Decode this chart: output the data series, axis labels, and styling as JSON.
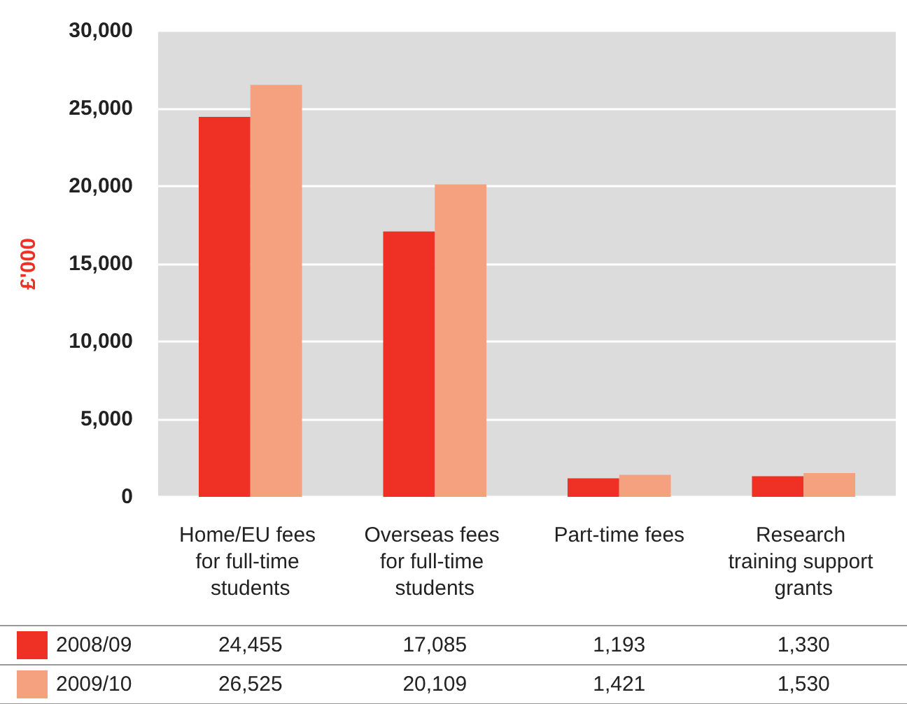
{
  "chart_data": {
    "type": "bar",
    "ylabel": "£'000",
    "categories": [
      "Home/EU fees for full-time students",
      "Overseas fees for full-time students",
      "Part-time fees",
      "Research training support grants"
    ],
    "series": [
      {
        "name": "2008/09",
        "color": "#ee3124",
        "values": [
          24455,
          17085,
          1193,
          1330
        ],
        "value_labels": [
          "24,455",
          "17,085",
          "1,193",
          "1,330"
        ]
      },
      {
        "name": "2009/10",
        "color": "#f5a07f",
        "values": [
          26525,
          20109,
          1421,
          1530
        ],
        "value_labels": [
          "26,525",
          "20,109",
          "1,421",
          "1,530"
        ]
      }
    ],
    "ylim": [
      0,
      30000
    ],
    "yticks": [
      0,
      {
        "value": 5000,
        "label": "5,000"
      },
      {
        "value": 10000,
        "label": "10,000"
      },
      {
        "value": 15000,
        "label": "15,000"
      },
      {
        "value": 20000,
        "label": "20,000"
      },
      {
        "value": 25000,
        "label": "25,000"
      },
      {
        "value": 30000,
        "label": "30,000"
      }
    ],
    "grid": "y",
    "legend": "bottom"
  }
}
